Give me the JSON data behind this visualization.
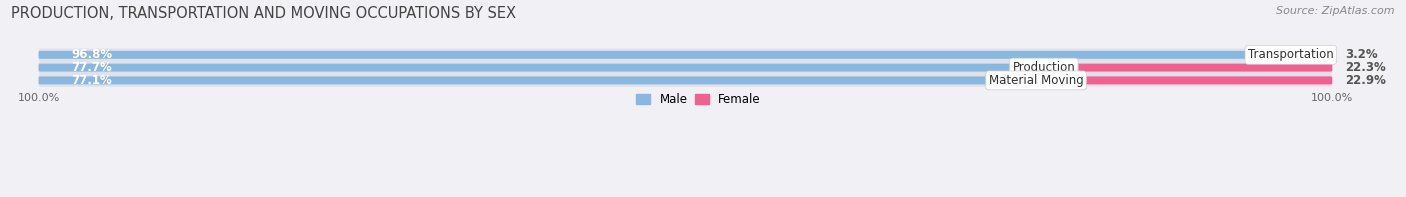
{
  "title": "PRODUCTION, TRANSPORTATION AND MOVING OCCUPATIONS BY SEX",
  "source": "Source: ZipAtlas.com",
  "categories": [
    "Transportation",
    "Production",
    "Material Moving"
  ],
  "male_values": [
    96.8,
    77.7,
    77.1
  ],
  "female_values": [
    3.2,
    22.3,
    22.9
  ],
  "male_color": "#88b8e0",
  "female_color": "#f06090",
  "female_light_color": "#f8b0c8",
  "bar_bg_color": "#e0e0e8",
  "background_color": "#f0f0f5",
  "title_fontsize": 10.5,
  "source_fontsize": 8,
  "bar_label_fontsize": 8.5,
  "category_fontsize": 8.5,
  "axis_label_fontsize": 8,
  "fig_width": 14.06,
  "fig_height": 1.97
}
